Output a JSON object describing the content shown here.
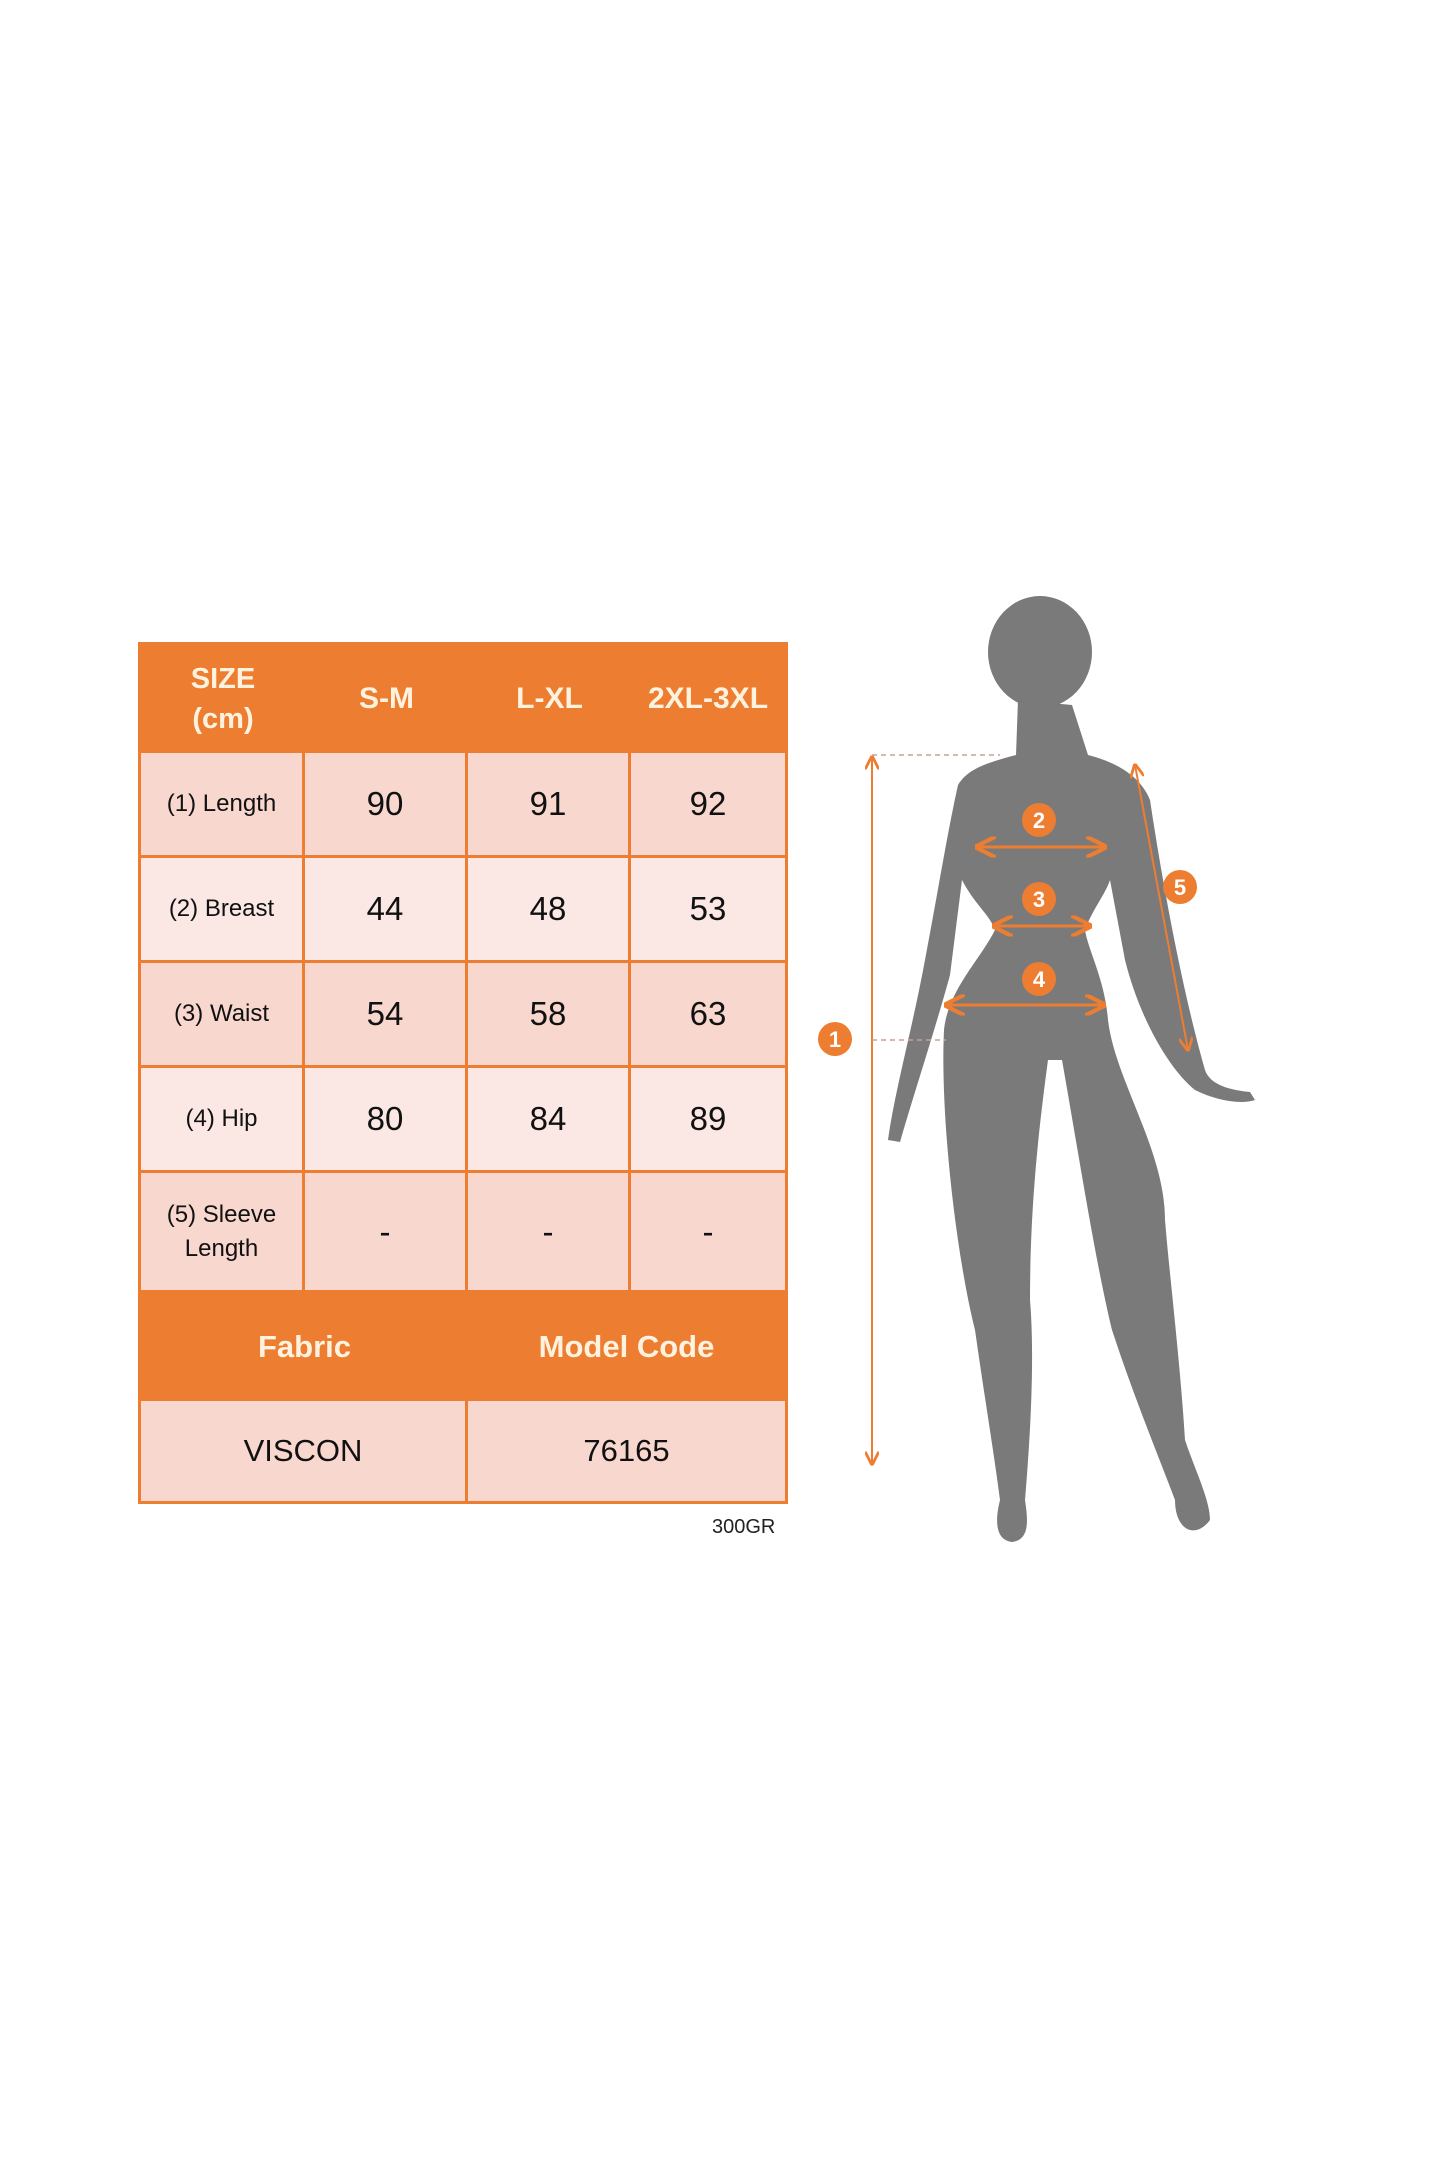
{
  "table": {
    "header": [
      "SIZE\n(cm)",
      "S-M",
      "L-XL",
      "2XL-3XL"
    ],
    "header_line1": "SIZE",
    "header_line2": "(cm)",
    "rows": [
      {
        "label": "(1) Length",
        "values": [
          "90",
          "91",
          "92"
        ]
      },
      {
        "label": "(2) Breast",
        "values": [
          "44",
          "48",
          "53"
        ]
      },
      {
        "label": "(3) Waist",
        "values": [
          "54",
          "58",
          "63"
        ]
      },
      {
        "label": "(4) Hip",
        "values": [
          "80",
          "84",
          "89"
        ]
      },
      {
        "label_line1": "(5) Sleeve",
        "label_line2": "Length",
        "values": [
          "-",
          "-",
          "-"
        ]
      }
    ],
    "fabric_label": "Fabric",
    "model_code_label": "Model Code",
    "fabric_value": "VISCON",
    "model_code_value": "76165"
  },
  "weight_note": "300GR",
  "figure": {
    "markers": [
      "1",
      "2",
      "3",
      "4",
      "5"
    ]
  },
  "colors": {
    "accent": "#ed7d31",
    "cell_dark": "#f8d7cf",
    "cell_light": "#fbe8e4",
    "silhouette": "#7a7a7a"
  }
}
